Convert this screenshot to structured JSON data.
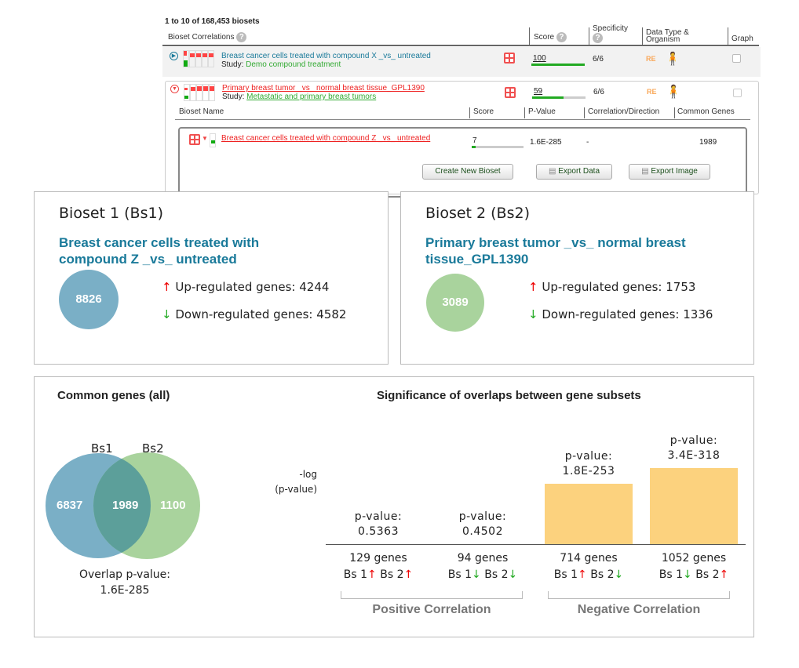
{
  "results": {
    "count_text": "1 to 10 of 168,453 biosets",
    "columns": {
      "correlations": "Bioset Correlations",
      "score": "Score",
      "specificity": "Specificity",
      "data_type": "Data Type & Organism",
      "graph": "Graph",
      "help": "?"
    },
    "rows": [
      {
        "title": "Breast cancer cells treated with compound X _vs_ untreated",
        "study_label": "Study:",
        "study": "Demo compound treatment",
        "score": "100",
        "score_pct": 100,
        "specificity": "6/6",
        "data_type": "RE",
        "expanded": false
      },
      {
        "title": "Primary breast tumor _vs_ normal breast tissue_GPL1390",
        "study_label": "Study:",
        "study": "Metastatic and primary breast tumors",
        "score": "59",
        "score_pct": 59,
        "specificity": "6/6",
        "data_type": "RE",
        "expanded": true
      }
    ],
    "sub": {
      "columns": [
        "Bioset Name",
        "Score",
        "P-Value",
        "Correlation/Direction",
        "Common Genes"
      ],
      "row": {
        "name": "Breast cancer cells treated with compound Z _vs_ untreated",
        "score": "7",
        "score_pct": 7,
        "pvalue": "1.6E-285",
        "direction": "-",
        "common": "1989"
      },
      "buttons": {
        "create": "Create New Bioset",
        "export_data": "Export Data",
        "export_image": "Export Image"
      }
    }
  },
  "bioset1": {
    "heading": "Bioset 1 (Bs1)",
    "name": "Breast cancer cells treated with compound Z _vs_ untreated",
    "total": "8826",
    "up": "Up-regulated genes: 4244",
    "down": "Down-regulated genes: 4582",
    "color": "#7aafc6"
  },
  "bioset2": {
    "heading": "Bioset 2 (Bs2)",
    "name": "Primary breast tumor _vs_ normal breast tissue_GPL1390",
    "total": "3089",
    "up": "Up-regulated genes: 1753",
    "down": "Down-regulated genes: 1336",
    "color": "#a9d39d"
  },
  "venn": {
    "title": "Common genes",
    "title_suffix": "(all)",
    "label1": "Bs1",
    "label2": "Bs2",
    "only1": "6837",
    "both": "1989",
    "only2": "1100",
    "overlap_label": "Overlap p-value:",
    "overlap_p": "1.6E-285",
    "overlap_color": "#5c9f9a"
  },
  "chart_data": {
    "type": "bar",
    "title": "Significance of overlaps between gene subsets",
    "ylabel": "-log (p-value)",
    "ylabel_1": "-log",
    "ylabel_2": "(p-value)",
    "bar_color": "#fcd27e",
    "categories": [
      {
        "genes": "129 genes",
        "bs1": "Bs 1",
        "bs1_dir": "up",
        "bs2": "Bs 2",
        "bs2_dir": "up",
        "p_label": "p-value:",
        "p": "0.5363",
        "value": 0.27
      },
      {
        "genes": "94 genes",
        "bs1": "Bs 1",
        "bs1_dir": "down",
        "bs2": "Bs 2",
        "bs2_dir": "down",
        "p_label": "p-value:",
        "p": "0.4502",
        "value": 0.35
      },
      {
        "genes": "714 genes",
        "bs1": "Bs 1",
        "bs1_dir": "up",
        "bs2": "Bs 2",
        "bs2_dir": "down",
        "p_label": "p-value:",
        "p": "1.8E-253",
        "value": 252.7
      },
      {
        "genes": "1052 genes",
        "bs1": "Bs 1",
        "bs1_dir": "down",
        "bs2": "Bs 2",
        "bs2_dir": "up",
        "p_label": "p-value:",
        "p": "3.4E-318",
        "value": 317.5
      }
    ],
    "groups": [
      "Positive Correlation",
      "Negative Correlation"
    ]
  }
}
